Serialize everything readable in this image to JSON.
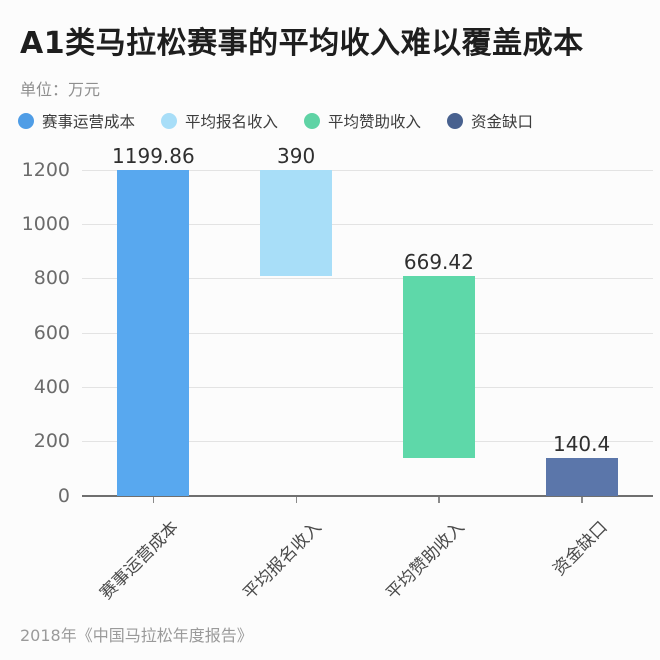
{
  "title": "A1类马拉松赛事的平均收入难以覆盖成本",
  "subtitle": "单位：万元",
  "source": "2018年《中国马拉松年度报告》",
  "legend": [
    {
      "label": "赛事运营成本",
      "color": "#4f9de6"
    },
    {
      "label": "平均报名收入",
      "color": "#a8def8"
    },
    {
      "label": "平均赞助收入",
      "color": "#5fd3a5"
    },
    {
      "label": "资金缺口",
      "color": "#48618f"
    }
  ],
  "chart_data": {
    "type": "bar",
    "subtype": "waterfall",
    "title": "A1类马拉松赛事的平均收入难以覆盖成本",
    "unit": "万元",
    "categories": [
      "赛事运营成本",
      "平均报名收入",
      "平均赞助收入",
      "资金缺口"
    ],
    "bars": [
      {
        "category": "赛事运营成本",
        "value": 1199.86,
        "start": 0,
        "end": 1199.86,
        "color": "#58a8ef",
        "value_label": "1199.86"
      },
      {
        "category": "平均报名收入",
        "value": 390,
        "start": 809.86,
        "end": 1199.86,
        "color": "#a8def8",
        "value_label": "390"
      },
      {
        "category": "平均赞助收入",
        "value": 669.42,
        "start": 140.44,
        "end": 809.86,
        "color": "#5ed8a9",
        "value_label": "669.42"
      },
      {
        "category": "资金缺口",
        "value": 140.4,
        "start": 0,
        "end": 140.4,
        "color": "#5b76aa",
        "value_label": "140.4"
      }
    ],
    "ylim": [
      0,
      1200
    ],
    "yticks": [
      0,
      200,
      400,
      600,
      800,
      1000,
      1200
    ],
    "grid": true,
    "legend_position": "top",
    "xlabel": "",
    "ylabel": ""
  }
}
